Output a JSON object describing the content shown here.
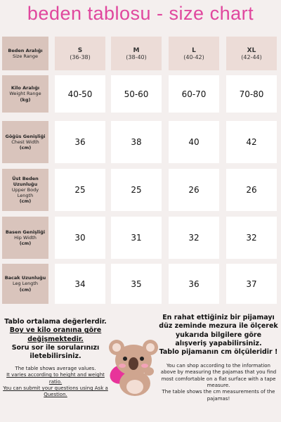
{
  "title": "beden tablosu - size chart",
  "table": {
    "header": {
      "tr": "Beden Aralığı",
      "en": "Size Range"
    },
    "sizes": [
      {
        "name": "S",
        "range": "(36-38)"
      },
      {
        "name": "M",
        "range": "(38-40)"
      },
      {
        "name": "L",
        "range": "(40-42)"
      },
      {
        "name": "XL",
        "range": "(42-44)"
      }
    ],
    "rows": [
      {
        "tr": "Kilo Aralığı",
        "en": "Weight Range",
        "unit": "(kg)",
        "values": [
          "40-50",
          "50-60",
          "60-70",
          "70-80"
        ]
      },
      {
        "tr": "Göğüs Genişliği",
        "en": "Chest Width",
        "unit": "(cm)",
        "values": [
          36,
          38,
          40,
          42
        ]
      },
      {
        "tr": "Üst Beden Uzunluğu",
        "en": "Upper Body Length",
        "unit": "(cm)",
        "values": [
          25,
          25,
          26,
          26
        ]
      },
      {
        "tr": "Basen Genişliği",
        "en": "Hip Width",
        "unit": "(cm)",
        "values": [
          30,
          31,
          32,
          32
        ]
      },
      {
        "tr": "Bacak Uzunluğu",
        "en": "Leg Length",
        "unit": "(cm)",
        "values": [
          34,
          35,
          36,
          37
        ]
      }
    ]
  },
  "notes_left": {
    "tr": [
      "Tablo ortalama değerlerdir.",
      "Boy ve kilo oranına göre değişmektedir.",
      "Soru sor ile sorularınızı iletebilirsiniz."
    ],
    "en": [
      "The table shows average values.",
      "It varies according to height and weight ratio.",
      "You can submit your questions using Ask a Question."
    ]
  },
  "notes_right": {
    "tr": [
      "En rahat ettiğiniz bir pijamayı düz zeminde mezura ile ölçerek yukarıda bilgilere göre alışveriş yapabilirsiniz.",
      "Tablo pijamanın cm ölçüleridir !"
    ],
    "en": [
      "You can shop according to the information above by measuring the pajamas that you find most comfortable on a flat surface with a tape measure.",
      "The table shows the cm measurements of the pajamas!"
    ]
  }
}
